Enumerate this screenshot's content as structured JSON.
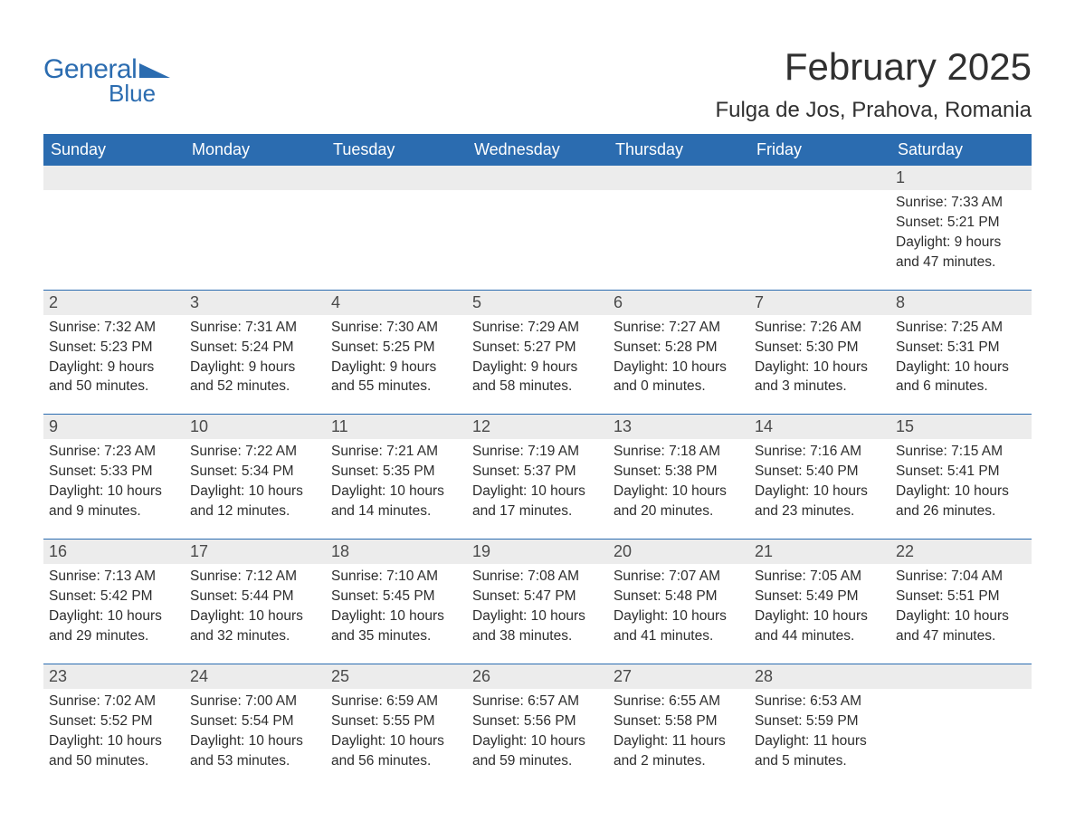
{
  "colors": {
    "header_bg": "#2b6cb0",
    "daynum_bg": "#ececec",
    "daynum_text": "#4a4a4a",
    "body_text": "#2d2d2d",
    "dow_text": "#ffffff",
    "week_border": "#2b6cb0",
    "logo_color": "#2b6cb0",
    "title_color": "#303030",
    "page_bg": "#ffffff"
  },
  "logo": {
    "line1": "General",
    "line2": "Blue"
  },
  "title": "February 2025",
  "location": "Fulga de Jos, Prahova, Romania",
  "dow": [
    "Sunday",
    "Monday",
    "Tuesday",
    "Wednesday",
    "Thursday",
    "Friday",
    "Saturday"
  ],
  "weeks": [
    [
      {
        "blank": true
      },
      {
        "blank": true
      },
      {
        "blank": true
      },
      {
        "blank": true
      },
      {
        "blank": true
      },
      {
        "blank": true
      },
      {
        "n": "1",
        "sunrise": "Sunrise: 7:33 AM",
        "sunset": "Sunset: 5:21 PM",
        "d1": "Daylight: 9 hours",
        "d2": "and 47 minutes."
      }
    ],
    [
      {
        "n": "2",
        "sunrise": "Sunrise: 7:32 AM",
        "sunset": "Sunset: 5:23 PM",
        "d1": "Daylight: 9 hours",
        "d2": "and 50 minutes."
      },
      {
        "n": "3",
        "sunrise": "Sunrise: 7:31 AM",
        "sunset": "Sunset: 5:24 PM",
        "d1": "Daylight: 9 hours",
        "d2": "and 52 minutes."
      },
      {
        "n": "4",
        "sunrise": "Sunrise: 7:30 AM",
        "sunset": "Sunset: 5:25 PM",
        "d1": "Daylight: 9 hours",
        "d2": "and 55 minutes."
      },
      {
        "n": "5",
        "sunrise": "Sunrise: 7:29 AM",
        "sunset": "Sunset: 5:27 PM",
        "d1": "Daylight: 9 hours",
        "d2": "and 58 minutes."
      },
      {
        "n": "6",
        "sunrise": "Sunrise: 7:27 AM",
        "sunset": "Sunset: 5:28 PM",
        "d1": "Daylight: 10 hours",
        "d2": "and 0 minutes."
      },
      {
        "n": "7",
        "sunrise": "Sunrise: 7:26 AM",
        "sunset": "Sunset: 5:30 PM",
        "d1": "Daylight: 10 hours",
        "d2": "and 3 minutes."
      },
      {
        "n": "8",
        "sunrise": "Sunrise: 7:25 AM",
        "sunset": "Sunset: 5:31 PM",
        "d1": "Daylight: 10 hours",
        "d2": "and 6 minutes."
      }
    ],
    [
      {
        "n": "9",
        "sunrise": "Sunrise: 7:23 AM",
        "sunset": "Sunset: 5:33 PM",
        "d1": "Daylight: 10 hours",
        "d2": "and 9 minutes."
      },
      {
        "n": "10",
        "sunrise": "Sunrise: 7:22 AM",
        "sunset": "Sunset: 5:34 PM",
        "d1": "Daylight: 10 hours",
        "d2": "and 12 minutes."
      },
      {
        "n": "11",
        "sunrise": "Sunrise: 7:21 AM",
        "sunset": "Sunset: 5:35 PM",
        "d1": "Daylight: 10 hours",
        "d2": "and 14 minutes."
      },
      {
        "n": "12",
        "sunrise": "Sunrise: 7:19 AM",
        "sunset": "Sunset: 5:37 PM",
        "d1": "Daylight: 10 hours",
        "d2": "and 17 minutes."
      },
      {
        "n": "13",
        "sunrise": "Sunrise: 7:18 AM",
        "sunset": "Sunset: 5:38 PM",
        "d1": "Daylight: 10 hours",
        "d2": "and 20 minutes."
      },
      {
        "n": "14",
        "sunrise": "Sunrise: 7:16 AM",
        "sunset": "Sunset: 5:40 PM",
        "d1": "Daylight: 10 hours",
        "d2": "and 23 minutes."
      },
      {
        "n": "15",
        "sunrise": "Sunrise: 7:15 AM",
        "sunset": "Sunset: 5:41 PM",
        "d1": "Daylight: 10 hours",
        "d2": "and 26 minutes."
      }
    ],
    [
      {
        "n": "16",
        "sunrise": "Sunrise: 7:13 AM",
        "sunset": "Sunset: 5:42 PM",
        "d1": "Daylight: 10 hours",
        "d2": "and 29 minutes."
      },
      {
        "n": "17",
        "sunrise": "Sunrise: 7:12 AM",
        "sunset": "Sunset: 5:44 PM",
        "d1": "Daylight: 10 hours",
        "d2": "and 32 minutes."
      },
      {
        "n": "18",
        "sunrise": "Sunrise: 7:10 AM",
        "sunset": "Sunset: 5:45 PM",
        "d1": "Daylight: 10 hours",
        "d2": "and 35 minutes."
      },
      {
        "n": "19",
        "sunrise": "Sunrise: 7:08 AM",
        "sunset": "Sunset: 5:47 PM",
        "d1": "Daylight: 10 hours",
        "d2": "and 38 minutes."
      },
      {
        "n": "20",
        "sunrise": "Sunrise: 7:07 AM",
        "sunset": "Sunset: 5:48 PM",
        "d1": "Daylight: 10 hours",
        "d2": "and 41 minutes."
      },
      {
        "n": "21",
        "sunrise": "Sunrise: 7:05 AM",
        "sunset": "Sunset: 5:49 PM",
        "d1": "Daylight: 10 hours",
        "d2": "and 44 minutes."
      },
      {
        "n": "22",
        "sunrise": "Sunrise: 7:04 AM",
        "sunset": "Sunset: 5:51 PM",
        "d1": "Daylight: 10 hours",
        "d2": "and 47 minutes."
      }
    ],
    [
      {
        "n": "23",
        "sunrise": "Sunrise: 7:02 AM",
        "sunset": "Sunset: 5:52 PM",
        "d1": "Daylight: 10 hours",
        "d2": "and 50 minutes."
      },
      {
        "n": "24",
        "sunrise": "Sunrise: 7:00 AM",
        "sunset": "Sunset: 5:54 PM",
        "d1": "Daylight: 10 hours",
        "d2": "and 53 minutes."
      },
      {
        "n": "25",
        "sunrise": "Sunrise: 6:59 AM",
        "sunset": "Sunset: 5:55 PM",
        "d1": "Daylight: 10 hours",
        "d2": "and 56 minutes."
      },
      {
        "n": "26",
        "sunrise": "Sunrise: 6:57 AM",
        "sunset": "Sunset: 5:56 PM",
        "d1": "Daylight: 10 hours",
        "d2": "and 59 minutes."
      },
      {
        "n": "27",
        "sunrise": "Sunrise: 6:55 AM",
        "sunset": "Sunset: 5:58 PM",
        "d1": "Daylight: 11 hours",
        "d2": "and 2 minutes."
      },
      {
        "n": "28",
        "sunrise": "Sunrise: 6:53 AM",
        "sunset": "Sunset: 5:59 PM",
        "d1": "Daylight: 11 hours",
        "d2": "and 5 minutes."
      },
      {
        "blank": true
      }
    ]
  ]
}
